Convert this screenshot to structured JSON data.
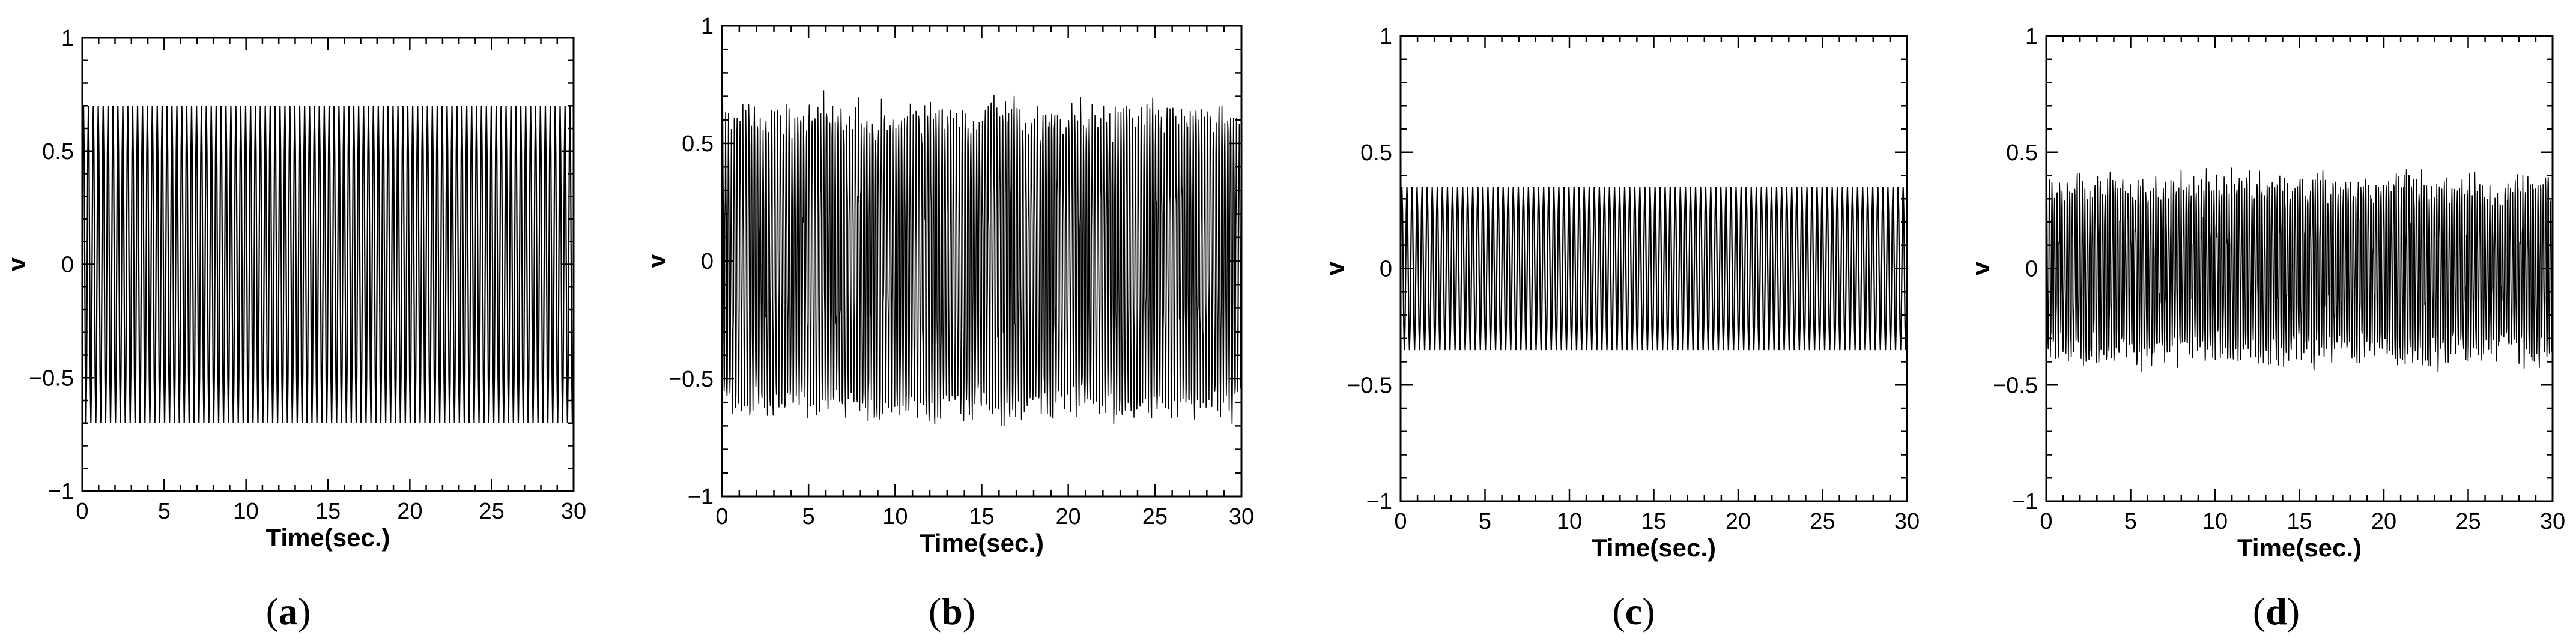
{
  "panel_captions": [
    {
      "open": "(",
      "letter": "a",
      "close": ")"
    },
    {
      "open": "(",
      "letter": "b",
      "close": ")"
    },
    {
      "open": "(",
      "letter": "c",
      "close": ")"
    },
    {
      "open": "(",
      "letter": "d",
      "close": ")"
    }
  ],
  "chart_data": [
    {
      "type": "line",
      "xlabel": "Time(sec.)",
      "ylabel": "v",
      "xlim": [
        0,
        30
      ],
      "ylim": [
        -1,
        1
      ],
      "x_ticks": [
        0,
        5,
        10,
        15,
        20,
        25,
        30
      ],
      "x_tick_labels": [
        "0",
        "5",
        "10",
        "15",
        "20",
        "25",
        "30"
      ],
      "y_ticks": [
        -1,
        -0.5,
        0,
        0.5,
        1
      ],
      "y_tick_labels": [
        "−1",
        "−0.5",
        "0",
        "0.5",
        "1"
      ],
      "grid": false,
      "line_color": "#000000",
      "signal": {
        "amplitude": 0.7,
        "cycles_over_range": 100,
        "noise": 0
      }
    },
    {
      "type": "line",
      "xlabel": "Time(sec.)",
      "ylabel": "v",
      "xlim": [
        0,
        30
      ],
      "ylim": [
        -1,
        1
      ],
      "x_ticks": [
        0,
        5,
        10,
        15,
        20,
        25,
        30
      ],
      "x_tick_labels": [
        "0",
        "5",
        "10",
        "15",
        "20",
        "25",
        "30"
      ],
      "y_ticks": [
        -1,
        -0.5,
        0,
        0.5,
        1
      ],
      "y_tick_labels": [
        "−1",
        "−0.5",
        "0",
        "0.5",
        "1"
      ],
      "grid": false,
      "line_color": "#000000",
      "signal": {
        "amplitude": 0.66,
        "cycles_over_range": 180,
        "noise": 0.05
      }
    },
    {
      "type": "line",
      "xlabel": "Time(sec.)",
      "ylabel": "v",
      "xlim": [
        0,
        30
      ],
      "ylim": [
        -1,
        1
      ],
      "x_ticks": [
        0,
        5,
        10,
        15,
        20,
        25,
        30
      ],
      "x_tick_labels": [
        "0",
        "5",
        "10",
        "15",
        "20",
        "25",
        "30"
      ],
      "y_ticks": [
        -1,
        -0.5,
        0,
        0.5,
        1
      ],
      "y_tick_labels": [
        "−1",
        "−0.5",
        "0",
        "0.5",
        "1"
      ],
      "grid": false,
      "line_color": "#000000",
      "signal": {
        "amplitude": 0.35,
        "cycles_over_range": 100,
        "noise": 0
      }
    },
    {
      "type": "line",
      "xlabel": "Time(sec.)",
      "ylabel": "v",
      "xlim": [
        0,
        30
      ],
      "ylim": [
        -1,
        1
      ],
      "x_ticks": [
        0,
        5,
        10,
        15,
        20,
        25,
        30
      ],
      "x_tick_labels": [
        "0",
        "5",
        "10",
        "15",
        "20",
        "25",
        "30"
      ],
      "y_ticks": [
        -1,
        -0.5,
        0,
        0.5,
        1
      ],
      "y_tick_labels": [
        "−1",
        "−0.5",
        "0",
        "0.5",
        "1"
      ],
      "grid": false,
      "line_color": "#000000",
      "signal": {
        "amplitude": 0.38,
        "cycles_over_range": 200,
        "noise": 0.06
      }
    }
  ]
}
